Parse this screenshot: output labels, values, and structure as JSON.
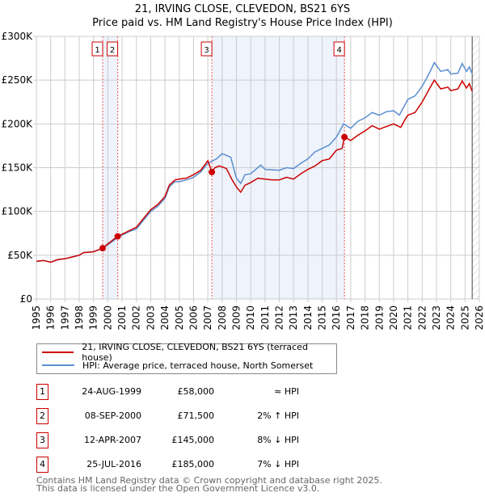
{
  "chart_data": {
    "type": "line",
    "title": "21, IRVING CLOSE, CLEVEDON, BS21 6YS",
    "subtitle": "Price paid vs. HM Land Registry's House Price Index (HPI)",
    "xlim": [
      1995,
      2026
    ],
    "ylim": [
      0,
      300000
    ],
    "x_ticks": [
      "1995",
      "1996",
      "1997",
      "1998",
      "1999",
      "2000",
      "2001",
      "2002",
      "2003",
      "2004",
      "2005",
      "2006",
      "2007",
      "2008",
      "2009",
      "2010",
      "2011",
      "2012",
      "2013",
      "2014",
      "2015",
      "2016",
      "2017",
      "2018",
      "2019",
      "2020",
      "2021",
      "2022",
      "2023",
      "2024",
      "2025",
      "2026"
    ],
    "y_ticks": [
      {
        "v": 0,
        "label": "£0"
      },
      {
        "v": 50000,
        "label": "£50K"
      },
      {
        "v": 100000,
        "label": "£100K"
      },
      {
        "v": 150000,
        "label": "£150K"
      },
      {
        "v": 200000,
        "label": "£200K"
      },
      {
        "v": 250000,
        "label": "£250K"
      },
      {
        "v": 300000,
        "label": "£300K"
      }
    ],
    "grid": true,
    "series": [
      {
        "name": "21, IRVING CLOSE, CLEVEDON, BS21 6YS (terraced house)",
        "color": "#cc0000",
        "points": [
          [
            1995,
            43
          ],
          [
            1995.5,
            44
          ],
          [
            1996,
            42
          ],
          [
            1996.5,
            45
          ],
          [
            1997,
            46
          ],
          [
            1997.5,
            48
          ],
          [
            1998,
            50
          ],
          [
            1998.3,
            53
          ],
          [
            1999,
            54
          ],
          [
            1999.64,
            58
          ],
          [
            2000,
            63
          ],
          [
            2000.69,
            71.5
          ],
          [
            2001,
            74
          ],
          [
            2001.5,
            78
          ],
          [
            2002,
            82
          ],
          [
            2002.5,
            92
          ],
          [
            2003,
            102
          ],
          [
            2003.5,
            108
          ],
          [
            2004,
            117
          ],
          [
            2004.3,
            130
          ],
          [
            2004.7,
            136
          ],
          [
            2005,
            137
          ],
          [
            2005.5,
            138
          ],
          [
            2006,
            142
          ],
          [
            2006.5,
            147
          ],
          [
            2007,
            158
          ],
          [
            2007.28,
            145
          ],
          [
            2007.5,
            150
          ],
          [
            2007.8,
            152
          ],
          [
            2008.3,
            149
          ],
          [
            2008.7,
            136
          ],
          [
            2009,
            128
          ],
          [
            2009.3,
            122
          ],
          [
            2009.6,
            130
          ],
          [
            2010,
            133
          ],
          [
            2010.5,
            138
          ],
          [
            2011,
            137
          ],
          [
            2011.5,
            136
          ],
          [
            2012,
            136
          ],
          [
            2012.5,
            139
          ],
          [
            2013,
            137
          ],
          [
            2013.5,
            143
          ],
          [
            2014,
            148
          ],
          [
            2014.5,
            152
          ],
          [
            2015,
            158
          ],
          [
            2015.5,
            160
          ],
          [
            2016,
            170
          ],
          [
            2016.4,
            172
          ],
          [
            2016.56,
            185
          ],
          [
            2017,
            181
          ],
          [
            2017.5,
            187
          ],
          [
            2018,
            192
          ],
          [
            2018.5,
            198
          ],
          [
            2019,
            194
          ],
          [
            2019.5,
            197
          ],
          [
            2020,
            200
          ],
          [
            2020.5,
            196
          ],
          [
            2020.8,
            205
          ],
          [
            2021,
            210
          ],
          [
            2021.5,
            213
          ],
          [
            2022,
            225
          ],
          [
            2022.5,
            240
          ],
          [
            2022.85,
            250
          ],
          [
            2023.3,
            240
          ],
          [
            2023.8,
            242
          ],
          [
            2024,
            238
          ],
          [
            2024.5,
            240
          ],
          [
            2024.8,
            249
          ],
          [
            2025.1,
            241
          ],
          [
            2025.3,
            246
          ],
          [
            2025.5,
            237
          ]
        ]
      },
      {
        "name": "HPI: Average price, terraced house, North Somerset",
        "color": "#5b8fd0",
        "points": [
          [
            1995,
            43
          ],
          [
            1995.5,
            44
          ],
          [
            1996,
            42
          ],
          [
            1996.5,
            45
          ],
          [
            1997,
            46
          ],
          [
            1997.5,
            48
          ],
          [
            1998,
            50
          ],
          [
            1998.3,
            53
          ],
          [
            1999,
            54
          ],
          [
            1999.64,
            58
          ],
          [
            2000,
            62
          ],
          [
            2000.69,
            70
          ],
          [
            2001,
            73
          ],
          [
            2001.5,
            77
          ],
          [
            2002,
            80
          ],
          [
            2002.5,
            90
          ],
          [
            2003,
            100
          ],
          [
            2003.5,
            106
          ],
          [
            2004,
            115
          ],
          [
            2004.3,
            128
          ],
          [
            2004.7,
            134
          ],
          [
            2005,
            134
          ],
          [
            2005.5,
            136
          ],
          [
            2006,
            139
          ],
          [
            2006.5,
            145
          ],
          [
            2007,
            155
          ],
          [
            2007.6,
            160
          ],
          [
            2008,
            166
          ],
          [
            2008.6,
            162
          ],
          [
            2009,
            138
          ],
          [
            2009.3,
            132
          ],
          [
            2009.6,
            142
          ],
          [
            2010,
            143
          ],
          [
            2010.7,
            153
          ],
          [
            2011,
            148
          ],
          [
            2012,
            147
          ],
          [
            2012.5,
            150
          ],
          [
            2013,
            149
          ],
          [
            2013.5,
            155
          ],
          [
            2014,
            160
          ],
          [
            2014.5,
            168
          ],
          [
            2015,
            172
          ],
          [
            2015.5,
            176
          ],
          [
            2016,
            185
          ],
          [
            2016.5,
            200
          ],
          [
            2017,
            195
          ],
          [
            2017.5,
            203
          ],
          [
            2018,
            207
          ],
          [
            2018.5,
            213
          ],
          [
            2019,
            210
          ],
          [
            2019.5,
            214
          ],
          [
            2020,
            215
          ],
          [
            2020.4,
            210
          ],
          [
            2020.8,
            222
          ],
          [
            2021,
            228
          ],
          [
            2021.5,
            232
          ],
          [
            2022,
            243
          ],
          [
            2022.5,
            258
          ],
          [
            2022.85,
            270
          ],
          [
            2023.3,
            260
          ],
          [
            2023.8,
            262
          ],
          [
            2024,
            257
          ],
          [
            2024.5,
            258
          ],
          [
            2024.8,
            269
          ],
          [
            2025.1,
            260
          ],
          [
            2025.3,
            265
          ],
          [
            2025.5,
            257
          ]
        ]
      }
    ],
    "y_unit": "£ thousands in points",
    "transactions": [
      {
        "label": "1",
        "x": 1999.64,
        "price": 58
      },
      {
        "label": "2",
        "x": 2000.69,
        "price": 71.5
      },
      {
        "label": "3",
        "x": 2007.28,
        "price": 145
      },
      {
        "label": "4",
        "x": 2016.56,
        "price": 185
      }
    ],
    "shaded": [
      [
        1999.64,
        2000.69
      ],
      [
        2007.28,
        2016.56
      ]
    ],
    "forecast_from": 2025.5
  },
  "legend": {
    "red": "21, IRVING CLOSE, CLEVEDON, BS21 6YS (terraced house)",
    "blue": "HPI: Average price, terraced house, North Somerset"
  },
  "table": [
    {
      "n": "1",
      "date": "24-AUG-1999",
      "price": "£58,000",
      "hpi": "≈ HPI"
    },
    {
      "n": "2",
      "date": "08-SEP-2000",
      "price": "£71,500",
      "hpi": "2% ↑ HPI"
    },
    {
      "n": "3",
      "date": "12-APR-2007",
      "price": "£145,000",
      "hpi": "8% ↓ HPI"
    },
    {
      "n": "4",
      "date": "25-JUL-2016",
      "price": "£185,000",
      "hpi": "7% ↓ HPI"
    }
  ],
  "footer": {
    "line1": "Contains HM Land Registry data © Crown copyright and database right 2025.",
    "line2": "This data is licensed under the Open Government Licence v3.0."
  }
}
